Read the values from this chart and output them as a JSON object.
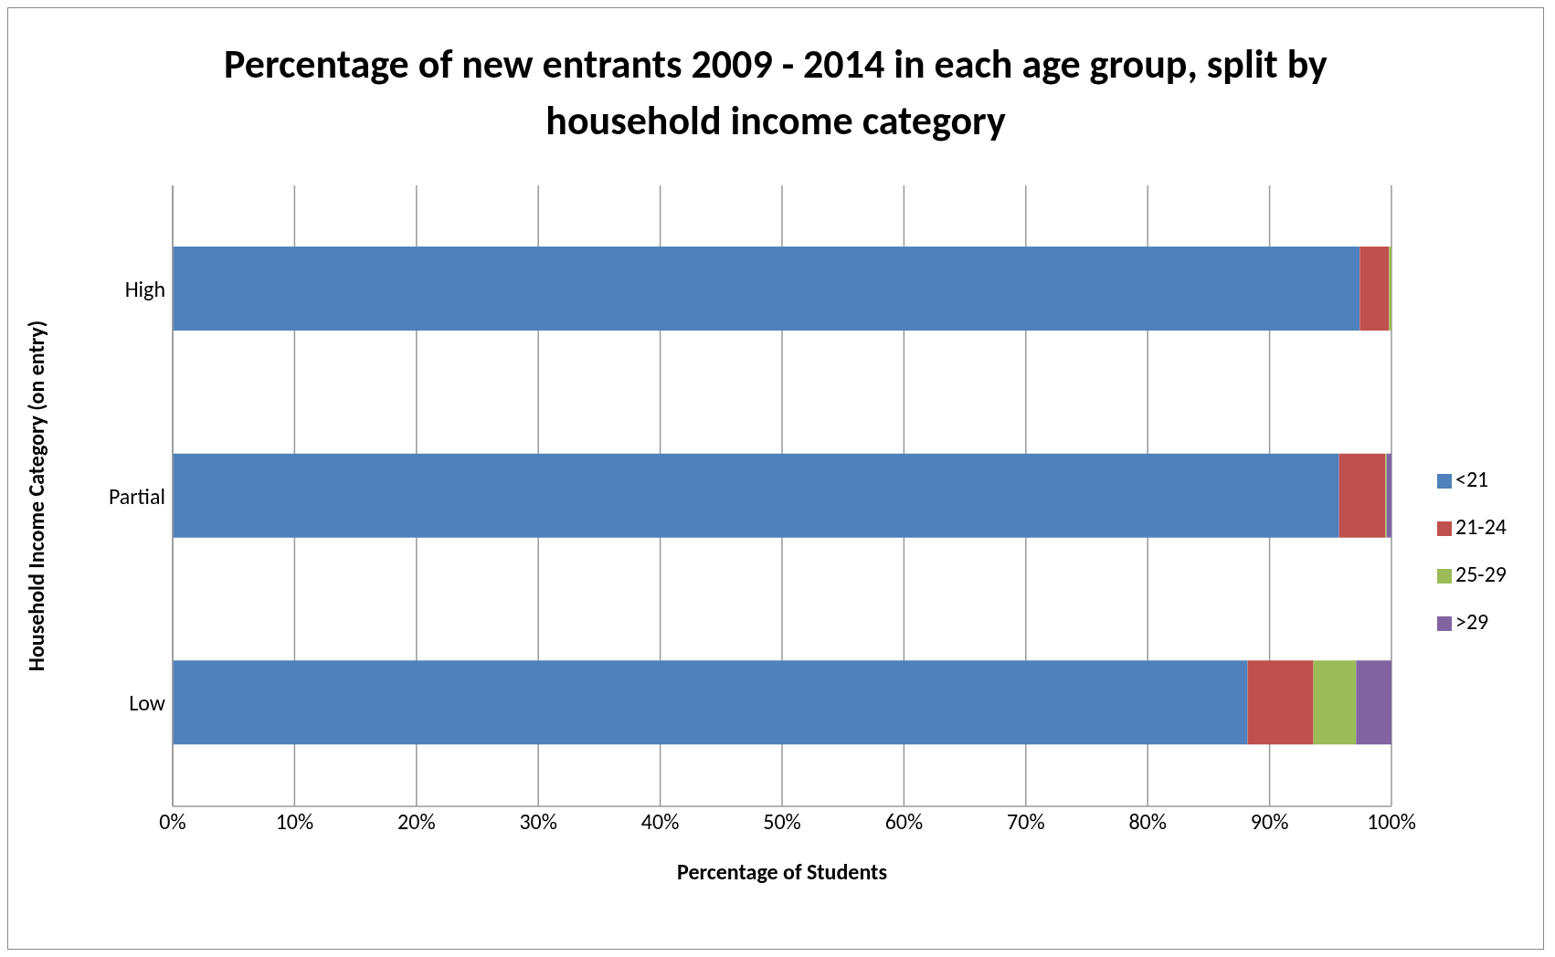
{
  "chart_data": {
    "type": "bar",
    "orientation": "horizontal",
    "stacked": true,
    "title": "Percentage of new entrants 2009 - 2014 in each age group, split by household income category",
    "xlabel": "Percentage of Students",
    "ylabel": "Household Income Category (on entry)",
    "categories": [
      "High",
      "Partial",
      "Low"
    ],
    "series": [
      {
        "name": "<21",
        "color": "#4f81bd",
        "values": [
          97.4,
          95.7,
          88.2
        ]
      },
      {
        "name": "21-24",
        "color": "#c0504d",
        "values": [
          2.4,
          3.8,
          5.4
        ]
      },
      {
        "name": "25-29",
        "color": "#9bbb59",
        "values": [
          0.2,
          0.1,
          3.5
        ]
      },
      {
        "name": ">29",
        "color": "#8064a2",
        "values": [
          0,
          0.4,
          2.9
        ]
      }
    ],
    "xlim": [
      0,
      100
    ],
    "xticks": [
      {
        "value": 0,
        "label": "0%"
      },
      {
        "value": 10,
        "label": "10%"
      },
      {
        "value": 20,
        "label": "20%"
      },
      {
        "value": 30,
        "label": "30%"
      },
      {
        "value": 40,
        "label": "40%"
      },
      {
        "value": 50,
        "label": "50%"
      },
      {
        "value": 60,
        "label": "60%"
      },
      {
        "value": 70,
        "label": "70%"
      },
      {
        "value": 80,
        "label": "80%"
      },
      {
        "value": 90,
        "label": "90%"
      },
      {
        "value": 100,
        "label": "100%"
      }
    ],
    "grid": "x",
    "legend": "right"
  }
}
